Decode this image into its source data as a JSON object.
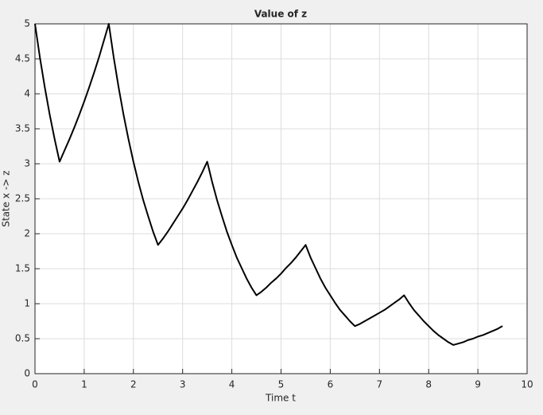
{
  "chart_data": {
    "type": "line",
    "title": "Value of z",
    "xlabel": "Time t",
    "ylabel": "State x -> z",
    "x": [
      0,
      0.1,
      0.2,
      0.3,
      0.4,
      0.5,
      0.6,
      0.7,
      0.8,
      0.9,
      1,
      1.1,
      1.2,
      1.3,
      1.4,
      1.5,
      1.6,
      1.7,
      1.8,
      1.9,
      2,
      2.1,
      2.2,
      2.3,
      2.4,
      2.5,
      2.6,
      2.7,
      2.8,
      2.9,
      3,
      3.1,
      3.2,
      3.3,
      3.4,
      3.5,
      3.6,
      3.7,
      3.8,
      3.9,
      4,
      4.1,
      4.2,
      4.3,
      4.4,
      4.5,
      4.6,
      4.7,
      4.8,
      4.9,
      5,
      5.1,
      5.2,
      5.3,
      5.4,
      5.5,
      5.6,
      5.7,
      5.8,
      5.9,
      6,
      6.1,
      6.2,
      6.3,
      6.4,
      6.5,
      6.6,
      6.7,
      6.8,
      6.9,
      7,
      7.1,
      7.2,
      7.3,
      7.4,
      7.5,
      7.6,
      7.7,
      7.8,
      7.9,
      8,
      8.1,
      8.2,
      8.3,
      8.4,
      8.5,
      8.6,
      8.7,
      8.8,
      8.9,
      9,
      9.1,
      9.2,
      9.3,
      9.4,
      9.5
    ],
    "series": [
      {
        "color": "#000000",
        "values": [
          5,
          4.52,
          4.09,
          3.7,
          3.35,
          3.03,
          3.19,
          3.35,
          3.52,
          3.7,
          3.89,
          4.09,
          4.3,
          4.52,
          4.76,
          5,
          4.52,
          4.09,
          3.7,
          3.35,
          3.03,
          2.74,
          2.48,
          2.25,
          2.03,
          1.84,
          1.93,
          2.03,
          2.14,
          2.25,
          2.36,
          2.48,
          2.61,
          2.74,
          2.88,
          3.03,
          2.74,
          2.48,
          2.25,
          2.03,
          1.84,
          1.66,
          1.51,
          1.36,
          1.23,
          1.12,
          1.17,
          1.23,
          1.3,
          1.36,
          1.43,
          1.51,
          1.58,
          1.66,
          1.75,
          1.84,
          1.66,
          1.51,
          1.36,
          1.23,
          1.12,
          1.01,
          0.91,
          0.83,
          0.75,
          0.68,
          0.71,
          0.75,
          0.79,
          0.83,
          0.87,
          0.91,
          0.96,
          1.01,
          1.06,
          1.12,
          1.01,
          0.91,
          0.83,
          0.75,
          0.68,
          0.61,
          0.55,
          0.5,
          0.45,
          0.41,
          0.43,
          0.45,
          0.48,
          0.5,
          0.53,
          0.55,
          0.58,
          0.61,
          0.64,
          0.68
        ]
      }
    ],
    "xlim": [
      0,
      10
    ],
    "ylim": [
      0,
      5
    ],
    "xticks": [
      0,
      1,
      2,
      3,
      4,
      5,
      6,
      7,
      8,
      9,
      10
    ],
    "yticks": [
      0,
      0.5,
      1,
      1.5,
      2,
      2.5,
      3,
      3.5,
      4,
      4.5,
      5
    ],
    "grid": true
  }
}
